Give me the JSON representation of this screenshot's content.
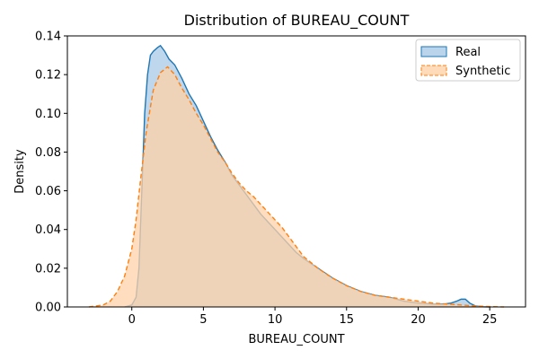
{
  "chart_data": {
    "type": "area",
    "title": "Distribution of BUREAU_COUNT",
    "xlabel": "BUREAU_COUNT",
    "ylabel": "Density",
    "xlim": [
      -4.5,
      27.5
    ],
    "ylim": [
      0,
      0.14
    ],
    "xticks": [
      0,
      5,
      10,
      15,
      20,
      25
    ],
    "yticks": [
      0.0,
      0.02,
      0.04,
      0.06,
      0.08,
      0.1,
      0.12,
      0.14
    ],
    "ytick_labels": [
      "0.00",
      "0.02",
      "0.04",
      "0.06",
      "0.08",
      "0.10",
      "0.12",
      "0.14"
    ],
    "grid": false,
    "legend": "top-right",
    "series": [
      {
        "name": "Real",
        "color": "#1f77b4",
        "fill": "#a9c9e6",
        "line_style": "solid",
        "x": [
          -0.5,
          0,
          0.3,
          0.5,
          0.7,
          0.9,
          1.1,
          1.3,
          1.5,
          1.8,
          2.0,
          2.3,
          2.6,
          3.0,
          3.5,
          4.0,
          4.5,
          5.0,
          5.5,
          6.0,
          6.5,
          7.0,
          7.5,
          8.0,
          8.5,
          9.0,
          9.5,
          10.0,
          10.5,
          11.0,
          11.5,
          12.0,
          13.0,
          14.0,
          15.0,
          16.0,
          17.0,
          18.0,
          19.0,
          20.0,
          21.0,
          21.8,
          22.3,
          22.7,
          23.0,
          23.3,
          23.6,
          24.0,
          24.5,
          25.0
        ],
        "y": [
          0.0,
          0.001,
          0.005,
          0.02,
          0.06,
          0.1,
          0.12,
          0.13,
          0.132,
          0.134,
          0.135,
          0.132,
          0.128,
          0.125,
          0.118,
          0.11,
          0.104,
          0.096,
          0.088,
          0.081,
          0.075,
          0.068,
          0.063,
          0.058,
          0.053,
          0.048,
          0.044,
          0.04,
          0.036,
          0.032,
          0.028,
          0.025,
          0.02,
          0.015,
          0.011,
          0.008,
          0.006,
          0.005,
          0.003,
          0.002,
          0.0015,
          0.0015,
          0.002,
          0.003,
          0.004,
          0.004,
          0.002,
          0.0005,
          0.0001,
          0.0
        ]
      },
      {
        "name": "Synthetic",
        "color": "#ff7f0e",
        "fill": "#ffd2a8",
        "line_style": "dashed",
        "x": [
          -3.0,
          -2.0,
          -1.5,
          -1.0,
          -0.5,
          0.0,
          0.3,
          0.6,
          1.0,
          1.5,
          2.0,
          2.5,
          3.0,
          3.5,
          4.0,
          4.5,
          5.0,
          5.5,
          6.0,
          6.5,
          7.0,
          7.5,
          8.0,
          8.5,
          9.0,
          9.5,
          10.0,
          10.5,
          11.0,
          11.5,
          12.0,
          13.0,
          14.0,
          15.0,
          16.0,
          17.0,
          18.0,
          19.0,
          20.0,
          21.0,
          22.0,
          23.0,
          24.0,
          25.0,
          26.0
        ],
        "y": [
          0.0,
          0.001,
          0.003,
          0.008,
          0.016,
          0.03,
          0.045,
          0.065,
          0.09,
          0.112,
          0.121,
          0.124,
          0.12,
          0.113,
          0.107,
          0.1,
          0.094,
          0.087,
          0.08,
          0.075,
          0.069,
          0.064,
          0.06,
          0.057,
          0.053,
          0.049,
          0.045,
          0.041,
          0.036,
          0.031,
          0.026,
          0.02,
          0.015,
          0.011,
          0.008,
          0.006,
          0.005,
          0.004,
          0.003,
          0.002,
          0.0015,
          0.001,
          0.0005,
          0.0002,
          0.0
        ]
      }
    ]
  }
}
